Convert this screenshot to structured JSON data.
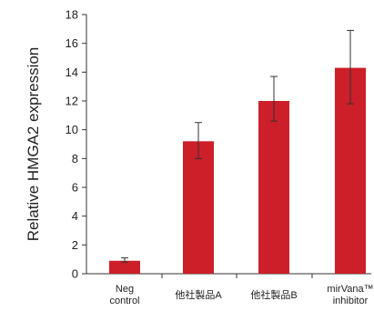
{
  "chart_data": {
    "type": "bar",
    "title": "",
    "xlabel": "",
    "ylabel": "Relative HMGA2 expression",
    "ylim": [
      0,
      18
    ],
    "yticks": [
      0,
      2,
      4,
      6,
      8,
      10,
      12,
      14,
      16,
      18
    ],
    "grid": false,
    "categories": [
      {
        "lines": [
          "Neg",
          "control"
        ]
      },
      {
        "lines": [
          "他社製品A"
        ]
      },
      {
        "lines": [
          "他社製品B"
        ]
      },
      {
        "lines": [
          "mirVana™",
          "inhibitor"
        ]
      }
    ],
    "values": [
      0.9,
      9.2,
      12.0,
      14.3
    ],
    "errors_low": [
      0.8,
      8.0,
      10.6,
      11.8
    ],
    "errors_high": [
      1.1,
      10.5,
      13.7,
      16.9
    ],
    "bar_color": "#cc1f2a",
    "axis_color": "#333333"
  }
}
